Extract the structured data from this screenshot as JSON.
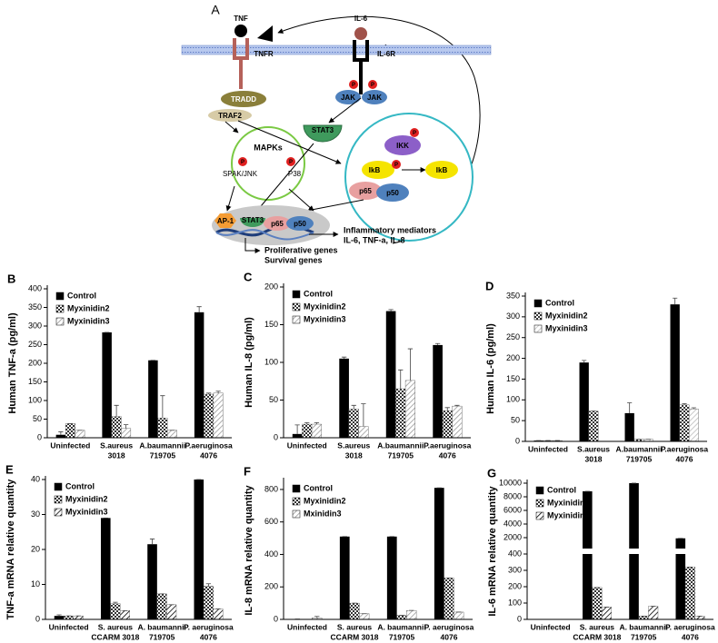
{
  "diagram": {
    "panel_label": "A",
    "tnf": "TNF",
    "tnfr": "TNFR",
    "il6": "IL-6",
    "il6r": "IL-6R",
    "jak": [
      "JAK",
      "JAK"
    ],
    "tradd": "TRADD",
    "traf2": "TRAF2",
    "stat3": "STAT3",
    "mapks": "MAPKs",
    "spak_jnk": "SPAK/JNK",
    "p38": "P38",
    "ikk": "IKK",
    "ikb": [
      "IkB",
      "IkB"
    ],
    "p65": "p65",
    "p50": "p50",
    "ap1": "AP-1",
    "nuclear": [
      "STAT3",
      "p65",
      "p50"
    ],
    "phospho": [
      "P",
      "P",
      "P",
      "P",
      "P",
      "P"
    ],
    "outputs": [
      "Inflammatory mediators",
      "IL-6, TNF-a, IL-8",
      "Proliferative genes",
      "Survival genes"
    ]
  },
  "chart_data": [
    {
      "type": "bar",
      "label": "B",
      "ylabel": "Human TNF-a (pg/ml)",
      "categories": [
        [
          "Uninfected"
        ],
        [
          "S.aureus",
          "3018"
        ],
        [
          "A.baumannii",
          "719705"
        ],
        [
          "P.aeruginosa",
          "4076"
        ]
      ],
      "series": [
        {
          "name": "Control",
          "color": "#000000",
          "pattern": "solid",
          "values": [
            8,
            283,
            208,
            337
          ],
          "errors": [
            8,
            0,
            0,
            15
          ]
        },
        {
          "name": "Myxinidin2",
          "color": "#333333",
          "pattern": "checker",
          "values": [
            38,
            57,
            53,
            117
          ],
          "errors": [
            0,
            30,
            60,
            3
          ]
        },
        {
          "name": "Myxinidin3",
          "color": "#999999",
          "pattern": "hatch",
          "values": [
            20,
            25,
            20,
            120
          ],
          "errors": [
            0,
            10,
            0,
            5
          ]
        }
      ],
      "ylim": [
        0,
        400
      ],
      "yticks": [
        0,
        50,
        100,
        150,
        200,
        250,
        300,
        350,
        400
      ]
    },
    {
      "type": "bar",
      "label": "C",
      "ylabel": "Human IL-8 (pg/ml)",
      "categories": [
        [
          "Uninfected"
        ],
        [
          "S.aureus",
          "3018"
        ],
        [
          "A.baumannii",
          "719705"
        ],
        [
          "P.aeruginosa",
          "4076"
        ]
      ],
      "series": [
        {
          "name": "Control",
          "color": "#000000",
          "pattern": "solid",
          "values": [
            5,
            105,
            168,
            123
          ],
          "errors": [
            12,
            2,
            2,
            2
          ]
        },
        {
          "name": "Myxinidin2",
          "color": "#333333",
          "pattern": "checker",
          "values": [
            18,
            38,
            65,
            36
          ],
          "errors": [
            2,
            5,
            25,
            4
          ]
        },
        {
          "name": "Myxinidin3",
          "color": "#999999",
          "pattern": "hatch",
          "values": [
            18,
            15,
            76,
            42
          ],
          "errors": [
            2,
            30,
            42,
            1
          ]
        }
      ],
      "ylim": [
        0,
        200
      ],
      "yticks": [
        0,
        50,
        100,
        150,
        200
      ]
    },
    {
      "type": "bar",
      "label": "D",
      "ylabel": "Human IL-6 (pg/ml)",
      "categories": [
        [
          "Uninfected"
        ],
        [
          "S.aureus",
          "3018"
        ],
        [
          "A.baumannii",
          "719705"
        ],
        [
          "P.aeruginosa",
          "4076"
        ]
      ],
      "series": [
        {
          "name": "Control",
          "color": "#000000",
          "pattern": "solid",
          "values": [
            2,
            190,
            68,
            330
          ],
          "errors": [
            0,
            5,
            25,
            15
          ]
        },
        {
          "name": "Myxinidin2",
          "color": "#333333",
          "pattern": "checker",
          "values": [
            2,
            73,
            5,
            88
          ],
          "errors": [
            0,
            0,
            0,
            3
          ]
        },
        {
          "name": "Myxinidin3",
          "color": "#bbbbbb",
          "pattern": "hatch",
          "values": [
            2,
            0,
            5,
            78
          ],
          "errors": [
            0,
            0,
            0,
            3
          ]
        }
      ],
      "ylim": [
        0,
        350
      ],
      "yticks": [
        0,
        50,
        100,
        150,
        200,
        250,
        300,
        350
      ]
    },
    {
      "type": "bar",
      "label": "E",
      "ylabel": "TNF-a mRNA relative quantity",
      "categories": [
        [
          "Uninfected"
        ],
        [
          "S. aureus",
          "CCARM 3018"
        ],
        [
          "A. baumannii",
          "719705"
        ],
        [
          "P. aeruginosa",
          "4076"
        ]
      ],
      "series": [
        {
          "name": "Control",
          "color": "#000000",
          "pattern": "solid",
          "values": [
            1,
            29,
            21.5,
            40
          ],
          "errors": [
            0.3,
            0,
            1.5,
            0
          ]
        },
        {
          "name": "Myxinidin2",
          "color": "#333333",
          "pattern": "checker",
          "values": [
            1,
            4.5,
            7.3,
            9.5
          ],
          "errors": [
            0,
            0.4,
            0,
            0.7
          ]
        },
        {
          "name": "Myxinidin3",
          "color": "#000000",
          "pattern": "hatch",
          "values": [
            1,
            2.5,
            4.2,
            3
          ],
          "errors": [
            0,
            0,
            0,
            0
          ]
        }
      ],
      "ylim": [
        0,
        40
      ],
      "yticks": [
        0,
        10,
        20,
        30,
        40
      ]
    },
    {
      "type": "bar",
      "label": "F",
      "ylabel": "IL-8 mRNA relative quantity",
      "categories": [
        [
          "Uninfected"
        ],
        [
          "S. aureus",
          "CCARM 3018"
        ],
        [
          "A. baumannii",
          "719705"
        ],
        [
          "P. aeruginosa",
          "4076"
        ]
      ],
      "series": [
        {
          "name": "Control",
          "color": "#000000",
          "pattern": "solid",
          "values": [
            2,
            510,
            510,
            810
          ],
          "errors": [
            0,
            0,
            0,
            0
          ]
        },
        {
          "name": "Myxinidin2",
          "color": "#333333",
          "pattern": "checker",
          "values": [
            0,
            100,
            25,
            255
          ],
          "errors": [
            0,
            0,
            0,
            0
          ]
        },
        {
          "name": "Mxinidin3",
          "color": "#999999",
          "pattern": "hatch",
          "values": [
            10,
            35,
            55,
            45
          ],
          "errors": [
            8,
            0,
            0,
            0
          ]
        }
      ],
      "ylim": [
        0,
        850
      ],
      "yticks": [
        0,
        200,
        400,
        600,
        800
      ]
    },
    {
      "type": "bar",
      "label": "G",
      "ylabel": "IL-6 mRNA relative quantity",
      "categories": [
        [
          "Uninfected"
        ],
        [
          "S. aureus",
          "CCARM 3018"
        ],
        [
          "A. baumannii",
          "719705"
        ],
        [
          "P. aeruginosa",
          "4076"
        ]
      ],
      "series": [
        {
          "name": "Control",
          "color": "#000000",
          "pattern": "solid",
          "values": [
            0,
            8800,
            10000,
            1900
          ],
          "errors": [
            0,
            0,
            0,
            0
          ]
        },
        {
          "name": "Myxinidin2",
          "color": "#333333",
          "pattern": "checker",
          "values": [
            0,
            195,
            20,
            320
          ],
          "errors": [
            0,
            0,
            0,
            0
          ]
        },
        {
          "name": "Myxinidin3",
          "color": "#000000",
          "pattern": "hatch",
          "values": [
            0,
            75,
            80,
            20
          ],
          "errors": [
            0,
            0,
            0,
            0
          ]
        }
      ],
      "ylim": [
        0,
        10000
      ],
      "ybreak": 400,
      "yticks": [
        0,
        100,
        200,
        300,
        400,
        2000,
        4000,
        6000,
        8000,
        10000
      ]
    }
  ]
}
